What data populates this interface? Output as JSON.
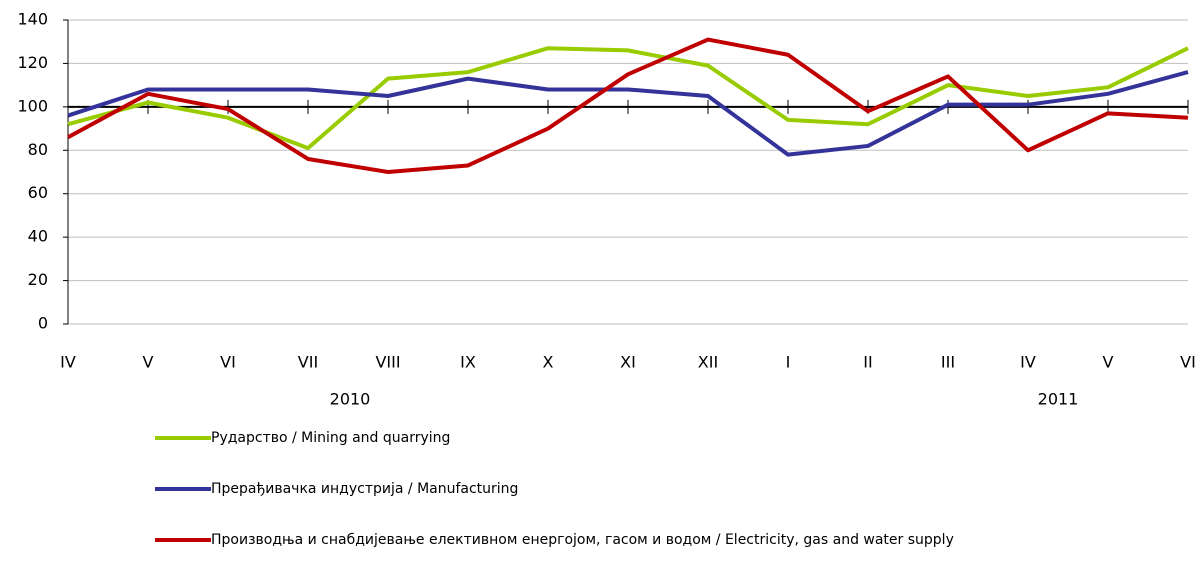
{
  "chart_data": {
    "type": "line",
    "categories": [
      "IV",
      "V",
      "VI",
      "VII",
      "VIII",
      "IX",
      "X",
      "XI",
      "XII",
      "I",
      "II",
      "III",
      "IV",
      "V",
      "VI"
    ],
    "year_groups": [
      "2010",
      "2011"
    ],
    "series": [
      {
        "name": "Рударство / Mining and quarrying",
        "color": "#99cc00",
        "values": [
          92,
          102,
          95,
          81,
          113,
          116,
          127,
          126,
          119,
          94,
          92,
          110,
          105,
          109,
          127
        ]
      },
      {
        "name": "Прерађивачка индустрија / Manufacturing",
        "color": "#333399",
        "values": [
          96,
          108,
          108,
          108,
          105,
          113,
          108,
          108,
          105,
          78,
          82,
          101,
          101,
          106,
          116
        ]
      },
      {
        "name": "Производња и снабдијевање елективном енергојом, гасом и  водом / Electricity, gas and water supply",
        "color": "#c00000",
        "values": [
          86,
          106,
          99,
          76,
          70,
          73,
          90,
          115,
          131,
          124,
          98,
          114,
          80,
          97,
          95
        ]
      }
    ],
    "ylim": [
      0,
      140
    ],
    "yticks": [
      0,
      20,
      40,
      60,
      80,
      100,
      120,
      140
    ],
    "xaxis_crosses": 100,
    "grid": true,
    "legend": "bottom"
  }
}
